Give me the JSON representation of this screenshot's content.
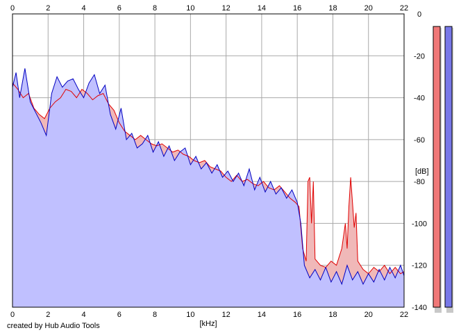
{
  "chart_data": {
    "type": "area",
    "x_axis": {
      "label": "[kHz]",
      "min": 0,
      "max": 22,
      "ticks": [
        0,
        2,
        4,
        6,
        8,
        10,
        12,
        14,
        16,
        18,
        20,
        22
      ]
    },
    "y_axis": {
      "label": "[dB]",
      "min": -140,
      "max": 0,
      "ticks": [
        0,
        -20,
        -40,
        -60,
        -80,
        -100,
        -120,
        -140
      ]
    },
    "grid": true,
    "series": [
      {
        "color": "#e00000",
        "fill": "#f0b8b8",
        "values": [
          [
            0,
            -33
          ],
          [
            0.3,
            -36
          ],
          [
            0.6,
            -40
          ],
          [
            0.9,
            -38
          ],
          [
            1.2,
            -45
          ],
          [
            1.5,
            -48
          ],
          [
            1.8,
            -50
          ],
          [
            2.1,
            -45
          ],
          [
            2.4,
            -42
          ],
          [
            2.7,
            -40
          ],
          [
            3.0,
            -36
          ],
          [
            3.3,
            -37
          ],
          [
            3.6,
            -40
          ],
          [
            3.9,
            -36
          ],
          [
            4.2,
            -38
          ],
          [
            4.5,
            -41
          ],
          [
            4.8,
            -39
          ],
          [
            5.1,
            -38
          ],
          [
            5.4,
            -43
          ],
          [
            5.7,
            -46
          ],
          [
            6.0,
            -52
          ],
          [
            6.3,
            -56
          ],
          [
            6.6,
            -58
          ],
          [
            6.9,
            -60
          ],
          [
            7.2,
            -58
          ],
          [
            7.5,
            -60
          ],
          [
            7.8,
            -62
          ],
          [
            8.1,
            -63
          ],
          [
            8.4,
            -62
          ],
          [
            8.7,
            -64
          ],
          [
            9.0,
            -66
          ],
          [
            9.3,
            -65
          ],
          [
            9.6,
            -67
          ],
          [
            9.9,
            -68
          ],
          [
            10.2,
            -70
          ],
          [
            10.5,
            -71
          ],
          [
            10.8,
            -70
          ],
          [
            11.1,
            -73
          ],
          [
            11.4,
            -74
          ],
          [
            11.7,
            -75
          ],
          [
            12.0,
            -78
          ],
          [
            12.3,
            -80
          ],
          [
            12.6,
            -77
          ],
          [
            12.9,
            -80
          ],
          [
            13.2,
            -79
          ],
          [
            13.5,
            -81
          ],
          [
            13.8,
            -82
          ],
          [
            14.1,
            -80
          ],
          [
            14.4,
            -83
          ],
          [
            14.7,
            -84
          ],
          [
            15.0,
            -82
          ],
          [
            15.3,
            -85
          ],
          [
            15.6,
            -88
          ],
          [
            15.9,
            -90
          ],
          [
            16.1,
            -92
          ],
          [
            16.3,
            -112
          ],
          [
            16.5,
            -118
          ],
          [
            16.6,
            -80
          ],
          [
            16.7,
            -78
          ],
          [
            16.8,
            -100
          ],
          [
            16.9,
            -80
          ],
          [
            17.0,
            -117
          ],
          [
            17.3,
            -120
          ],
          [
            17.6,
            -121
          ],
          [
            17.9,
            -118
          ],
          [
            18.2,
            -120
          ],
          [
            18.5,
            -112
          ],
          [
            18.7,
            -100
          ],
          [
            18.8,
            -112
          ],
          [
            18.9,
            -92
          ],
          [
            19.0,
            -78
          ],
          [
            19.1,
            -90
          ],
          [
            19.2,
            -102
          ],
          [
            19.3,
            -95
          ],
          [
            19.4,
            -118
          ],
          [
            19.7,
            -122
          ],
          [
            20.0,
            -124
          ],
          [
            20.3,
            -121
          ],
          [
            20.6,
            -123
          ],
          [
            20.9,
            -120
          ],
          [
            21.2,
            -124
          ],
          [
            21.5,
            -121
          ],
          [
            21.8,
            -124
          ],
          [
            22.0,
            -123
          ]
        ]
      },
      {
        "color": "#0000c0",
        "fill": "#c0c0ff",
        "values": [
          [
            0,
            -35
          ],
          [
            0.2,
            -28
          ],
          [
            0.4,
            -40
          ],
          [
            0.7,
            -26
          ],
          [
            1.0,
            -42
          ],
          [
            1.3,
            -47
          ],
          [
            1.6,
            -52
          ],
          [
            1.9,
            -58
          ],
          [
            2.2,
            -38
          ],
          [
            2.5,
            -30
          ],
          [
            2.8,
            -35
          ],
          [
            3.1,
            -32
          ],
          [
            3.4,
            -31
          ],
          [
            3.7,
            -36
          ],
          [
            4.0,
            -40
          ],
          [
            4.3,
            -33
          ],
          [
            4.6,
            -29
          ],
          [
            4.9,
            -38
          ],
          [
            5.2,
            -34
          ],
          [
            5.5,
            -48
          ],
          [
            5.8,
            -55
          ],
          [
            6.1,
            -45
          ],
          [
            6.4,
            -60
          ],
          [
            6.7,
            -57
          ],
          [
            7.0,
            -64
          ],
          [
            7.3,
            -62
          ],
          [
            7.6,
            -58
          ],
          [
            7.9,
            -66
          ],
          [
            8.2,
            -61
          ],
          [
            8.5,
            -68
          ],
          [
            8.8,
            -63
          ],
          [
            9.1,
            -70
          ],
          [
            9.4,
            -66
          ],
          [
            9.7,
            -64
          ],
          [
            10.0,
            -72
          ],
          [
            10.3,
            -68
          ],
          [
            10.6,
            -74
          ],
          [
            10.9,
            -71
          ],
          [
            11.2,
            -76
          ],
          [
            11.5,
            -72
          ],
          [
            11.8,
            -78
          ],
          [
            12.1,
            -75
          ],
          [
            12.4,
            -80
          ],
          [
            12.7,
            -76
          ],
          [
            13.0,
            -82
          ],
          [
            13.3,
            -74
          ],
          [
            13.6,
            -84
          ],
          [
            13.9,
            -78
          ],
          [
            14.2,
            -85
          ],
          [
            14.5,
            -80
          ],
          [
            14.8,
            -86
          ],
          [
            15.1,
            -83
          ],
          [
            15.4,
            -88
          ],
          [
            15.7,
            -84
          ],
          [
            16.0,
            -90
          ],
          [
            16.2,
            -100
          ],
          [
            16.4,
            -120
          ],
          [
            16.7,
            -126
          ],
          [
            17.0,
            -122
          ],
          [
            17.3,
            -127
          ],
          [
            17.6,
            -121
          ],
          [
            17.9,
            -128
          ],
          [
            18.2,
            -123
          ],
          [
            18.5,
            -129
          ],
          [
            18.8,
            -120
          ],
          [
            19.1,
            -127
          ],
          [
            19.4,
            -123
          ],
          [
            19.7,
            -129
          ],
          [
            20.0,
            -124
          ],
          [
            20.3,
            -128
          ],
          [
            20.6,
            -122
          ],
          [
            20.9,
            -127
          ],
          [
            21.2,
            -121
          ],
          [
            21.5,
            -126
          ],
          [
            21.8,
            -120
          ],
          [
            22.0,
            -125
          ]
        ]
      }
    ],
    "level_meters": [
      {
        "color": "#f07878",
        "level_db": -6
      },
      {
        "color": "#7878e8",
        "level_db": -6
      }
    ]
  },
  "footer": {
    "credit": "created by Hub Audio Tools"
  }
}
